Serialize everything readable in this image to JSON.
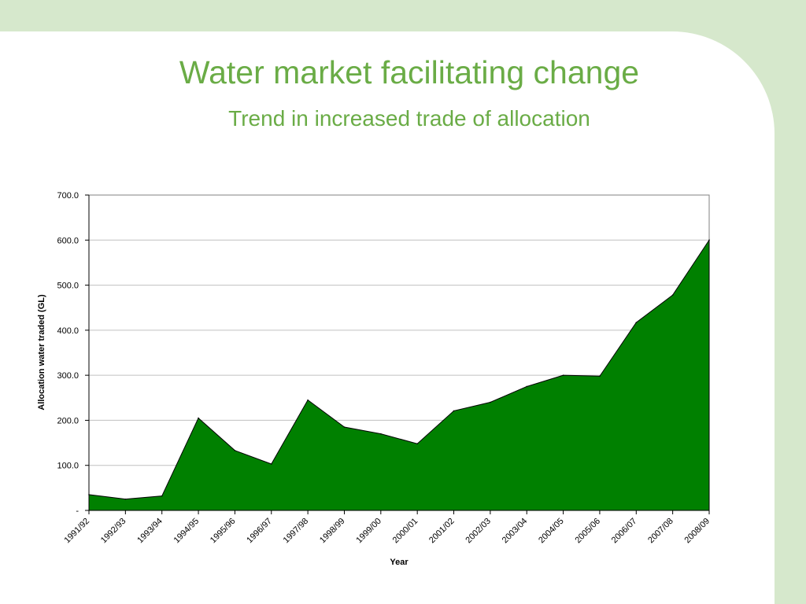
{
  "slide": {
    "title": "Water market facilitating change",
    "subtitle": "Trend in increased trade of allocation"
  },
  "colors": {
    "background": "#d6e8cc",
    "panel": "#ffffff",
    "title": "#6aac46",
    "area_fill": "#008000",
    "gridline": "#c0c0c0"
  },
  "chart_data": {
    "type": "area",
    "title": "",
    "xlabel": "Year",
    "ylabel": "Allocation water traded (GL)",
    "ylim": [
      0,
      700
    ],
    "yticks": [
      0,
      100,
      200,
      300,
      400,
      500,
      600,
      700
    ],
    "ytick_labels": [
      "-",
      "100.0",
      "200.0",
      "300.0",
      "400.0",
      "500.0",
      "600.0",
      "700.0"
    ],
    "grid": true,
    "categories": [
      "1991/92",
      "1992/93",
      "1993/94",
      "1994/95",
      "1995/96",
      "1996/97",
      "1997/98",
      "1998/99",
      "1999/00",
      "2000/01",
      "2001/02",
      "2002/03",
      "2003/04",
      "2004/05",
      "2005/06",
      "2006/07",
      "2007/08",
      "2008/09"
    ],
    "values": [
      35,
      25,
      32,
      205,
      133,
      103,
      245,
      185,
      170,
      148,
      221,
      240,
      275,
      300,
      298,
      417,
      478,
      600
    ]
  }
}
